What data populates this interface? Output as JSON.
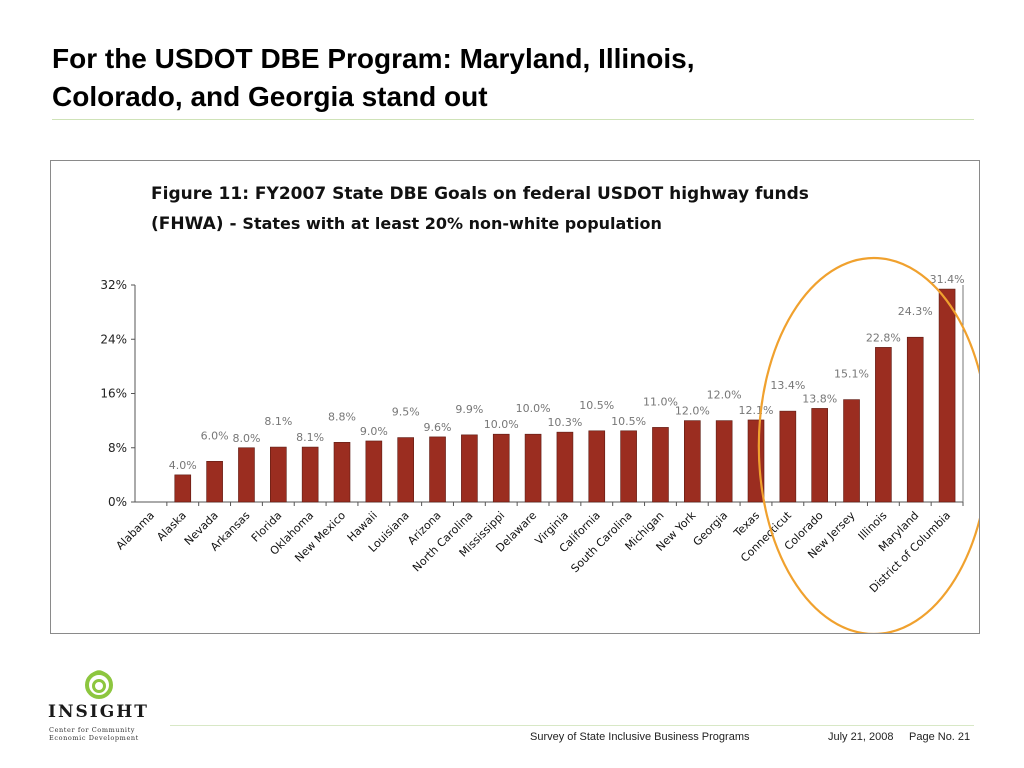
{
  "slide": {
    "title_line1": "For the USDOT DBE Program: Maryland, Illinois,",
    "title_line2": "Colorado, and Georgia stand out"
  },
  "figure": {
    "title_line1": "Figure 11: FY2007 State DBE Goals on federal USDOT highway funds",
    "title_line2_prefix": "(FHWA) - ",
    "title_line2_suffix": "States with at least 20% non-white population"
  },
  "chart_data": {
    "type": "bar",
    "title": "Figure 11: FY2007 State DBE Goals on federal USDOT highway funds (FHWA) - States with at least 20% non-white population",
    "xlabel": "",
    "ylabel": "",
    "ylim": [
      0,
      32
    ],
    "yticks": [
      "0%",
      "8%",
      "16%",
      "24%",
      "32%"
    ],
    "ytick_values": [
      0,
      8,
      16,
      24,
      32
    ],
    "grid": false,
    "bar_color": "#9b2d20",
    "highlight_color": "#f0a12e",
    "categories": [
      "Alabama",
      "Alaska",
      "Nevada",
      "Arkansas",
      "Florida",
      "Oklahoma",
      "New Mexico",
      "Hawaii",
      "Louisiana",
      "Arizona",
      "North Carolina",
      "Mississippi",
      "Delaware",
      "Virginia",
      "California",
      "South Carolina",
      "Michigan",
      "New York",
      "Georgia",
      "Texas",
      "Connecticut",
      "Colorado",
      "New Jersey",
      "Illinois",
      "Maryland",
      "District of Columbia"
    ],
    "values": [
      0,
      4.0,
      6.0,
      8.0,
      8.1,
      8.1,
      8.8,
      9.0,
      9.5,
      9.6,
      9.9,
      10.0,
      10.0,
      10.3,
      10.5,
      10.5,
      11.0,
      12.0,
      12.0,
      12.1,
      13.4,
      13.8,
      15.1,
      22.8,
      24.3,
      31.4
    ],
    "data_labels": [
      "",
      "4.0%",
      "6.0%",
      "8.0%",
      "8.1%",
      "8.1%",
      "8.8%",
      "9.0%",
      "9.5%",
      "9.6%",
      "9.9%",
      "10.0%",
      "10.0%",
      "10.3%",
      "10.5%",
      "10.5%",
      "11.0%",
      "12.0%",
      "12.0%",
      "12.1%",
      "13.4%",
      "13.8%",
      "15.1%",
      "22.8%",
      "24.3%",
      "31.4%"
    ]
  },
  "logo": {
    "word": "INSIGHT",
    "sub_line1": "Center for Community",
    "sub_line2": "Economic Development",
    "accent": "#8dc63f"
  },
  "footer": {
    "survey": "Survey of State Inclusive Business Programs",
    "date": "July 21, 2008",
    "page": "Page No. 21"
  }
}
